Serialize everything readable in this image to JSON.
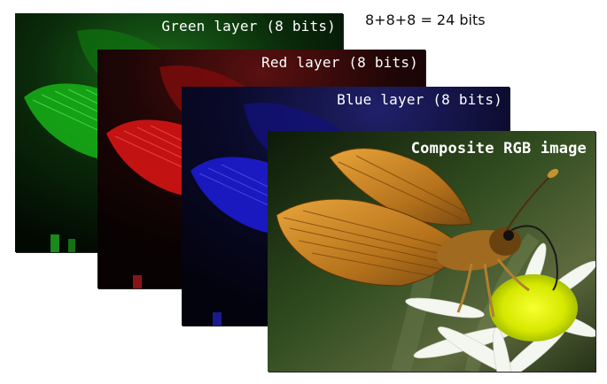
{
  "equation": "8+8+8 = 24 bits",
  "layers": {
    "green": {
      "caption": "Green layer (8 bits)",
      "color": "#1fd020"
    },
    "red": {
      "caption": "Red layer (8 bits)",
      "color": "#e01818"
    },
    "blue": {
      "caption": "Blue layer (8 bits)",
      "color": "#2222e0"
    },
    "composite": {
      "caption": "Composite RGB image"
    }
  },
  "icons": {
    "butterfly": "butterfly-icon",
    "flower": "daisy-flower-icon"
  }
}
